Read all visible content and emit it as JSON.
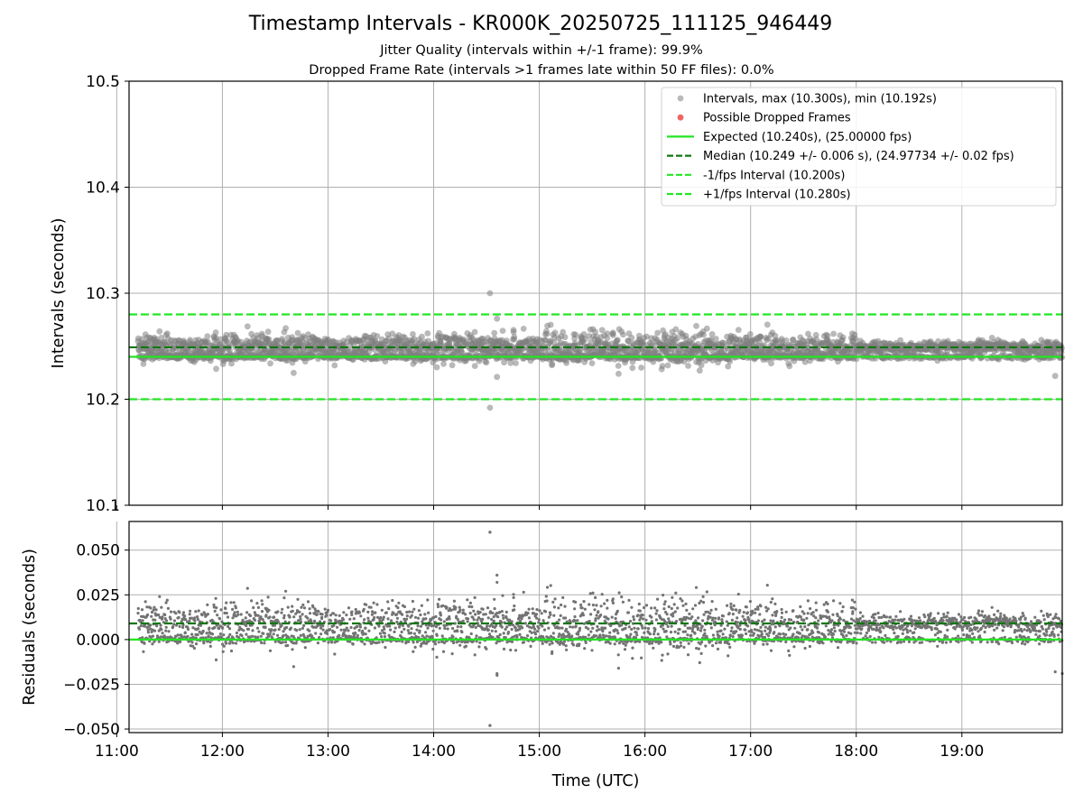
{
  "figure": {
    "title": "Timestamp Intervals - KR000K_20250725_111125_946449",
    "subtitle_1": "Jitter Quality (intervals within +/-1 frame): 99.9%",
    "subtitle_2": "Dropped Frame Rate (intervals >1 frames late within 50 FF files): 0.0%"
  },
  "chart_data": [
    {
      "type": "scatter",
      "panel": "intervals",
      "xlabel": "",
      "ylabel": "Intervals (seconds)",
      "xlim": [
        "10:46",
        "19:57"
      ],
      "ylim": [
        10.1,
        10.5
      ],
      "yticks": [
        "10.1",
        "10.2",
        "10.3",
        "10.4",
        "10.5"
      ],
      "grid": true,
      "legend_position": "upper right",
      "colors": {
        "points": "#808080",
        "dropped": "#e8322e",
        "expected": "#22e622",
        "median": "#117711",
        "bounds": "#22e622"
      },
      "legend": [
        "Intervals, max (10.300s), min (10.192s)",
        "Possible Dropped Frames",
        "Expected (10.240s), (25.00000 fps)",
        "Median (10.249 +/- 0.006 s), (24.97734 +/- 0.02 fps)",
        "-1/fps Interval (10.200s)",
        "+1/fps Interval (10.280s)"
      ],
      "lines": {
        "expected": 10.24,
        "median": 10.249,
        "lower": 10.2,
        "upper": 10.28
      },
      "series": [
        {
          "name": "Intervals",
          "x_range": [
            "11:12",
            "19:57"
          ],
          "y_center": 10.249,
          "y_spread": 0.006,
          "points": [
            {
              "x": "14:32",
              "y": 10.3
            },
            {
              "x": "14:32",
              "y": 10.192
            },
            {
              "x": "14:36",
              "y": 10.276
            },
            {
              "x": "14:36",
              "y": 10.221
            },
            {
              "x": "12:36",
              "y": 10.267
            },
            {
              "x": "15:45",
              "y": 10.224
            },
            {
              "x": "19:53",
              "y": 10.222
            }
          ]
        },
        {
          "name": "Possible Dropped Frames",
          "points": []
        }
      ]
    },
    {
      "type": "scatter",
      "panel": "residuals",
      "xlabel": "Time (UTC)",
      "ylabel": "Residuals (seconds)",
      "xlim": [
        "10:46",
        "19:57"
      ],
      "ylim": [
        -0.052,
        0.066
      ],
      "yticks": [
        "−0.050",
        "−0.025",
        "0.000",
        "0.025",
        "0.050"
      ],
      "xticks": [
        "11:00",
        "12:00",
        "13:00",
        "14:00",
        "15:00",
        "16:00",
        "17:00",
        "18:00",
        "19:00"
      ],
      "grid": true,
      "lines": {
        "zero": 0.0,
        "median": 0.009
      },
      "series": [
        {
          "name": "Residuals",
          "x_range": [
            "11:12",
            "19:57"
          ],
          "y_center": 0.009,
          "points": [
            {
              "x": "14:32",
              "y": 0.06
            },
            {
              "x": "14:32",
              "y": -0.048
            },
            {
              "x": "14:36",
              "y": 0.032
            },
            {
              "x": "14:36",
              "y": -0.02
            },
            {
              "x": "19:57",
              "y": -0.019
            }
          ]
        }
      ]
    }
  ]
}
